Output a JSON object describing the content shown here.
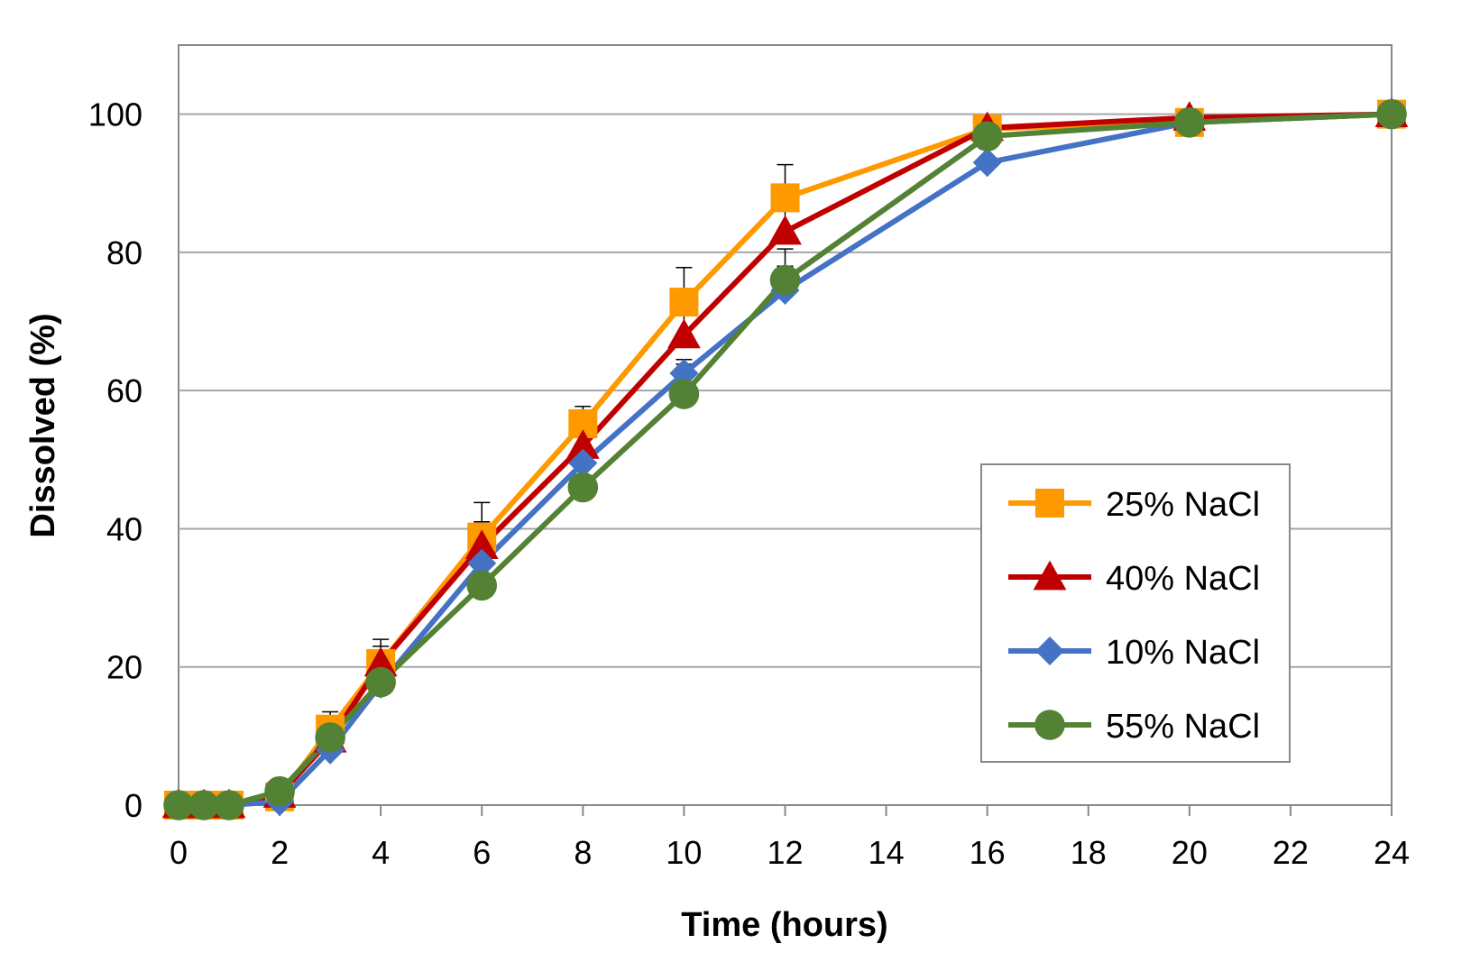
{
  "chart_data": {
    "type": "line",
    "title": "",
    "xlabel": "Time (hours)",
    "ylabel": "Dissolved (%)",
    "xlim": [
      0,
      24
    ],
    "ylim": [
      0,
      110
    ],
    "x_ticks": [
      0,
      2,
      4,
      6,
      8,
      10,
      12,
      14,
      16,
      18,
      20,
      22,
      24
    ],
    "y_ticks": [
      0,
      20,
      40,
      60,
      80,
      100
    ],
    "grid": "horizontal",
    "legend_position": "right-middle",
    "x": [
      0,
      0.5,
      1,
      2,
      3,
      4,
      6,
      8,
      10,
      12,
      16,
      20,
      24
    ],
    "series": [
      {
        "name": "25% NaCl",
        "color": "#FF9900",
        "marker": "square",
        "values": [
          0,
          0,
          0,
          1.2,
          11,
          20.5,
          38.8,
          55.2,
          72.8,
          87.9,
          97.9,
          98.8,
          100
        ],
        "error": [
          0,
          0,
          0,
          0.5,
          2.5,
          3.5,
          5,
          2.5,
          5,
          4.8,
          1.2,
          0.8,
          0
        ]
      },
      {
        "name": "40% NaCl",
        "color": "#C00000",
        "marker": "triangle",
        "values": [
          0,
          0,
          0,
          1.5,
          9.5,
          20.5,
          37.5,
          52,
          68,
          83,
          98,
          99.5,
          100
        ],
        "error": [
          0,
          0,
          0,
          0.5,
          2,
          2.5,
          3.5,
          2,
          3.5,
          4,
          1,
          0.5,
          0
        ]
      },
      {
        "name": "10% NaCl",
        "color": "#4472C4",
        "marker": "diamond",
        "values": [
          0,
          0,
          0,
          0.5,
          8,
          17.5,
          35,
          49.5,
          62.5,
          74.5,
          93,
          98.8,
          100
        ],
        "error": [
          0,
          0,
          0,
          0.5,
          1.5,
          2,
          3,
          2.5,
          2,
          3.5,
          2,
          0.8,
          0
        ]
      },
      {
        "name": "55% NaCl",
        "color": "#548235",
        "marker": "circle",
        "values": [
          0,
          0,
          0,
          2,
          9.8,
          17.8,
          31.8,
          46,
          59.5,
          76,
          96.8,
          98.8,
          100
        ],
        "error": [
          0,
          0,
          0,
          0.5,
          2,
          2.5,
          3.5,
          4.5,
          4.3,
          4.5,
          1.5,
          0.5,
          0
        ]
      }
    ],
    "legend_order": [
      "25% NaCl",
      "40% NaCl",
      "10% NaCl",
      "55% NaCl"
    ]
  }
}
